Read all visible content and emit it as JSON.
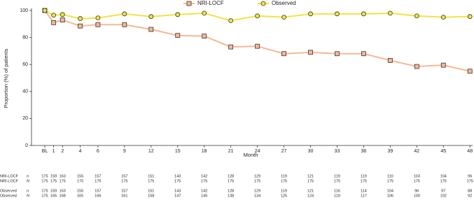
{
  "chart_data": {
    "type": "line",
    "xlabel": "Month",
    "ylabel": "Proportion (%) of patients",
    "x": [
      0,
      1,
      2,
      4,
      6,
      9,
      12,
      15,
      18,
      21,
      24,
      27,
      30,
      33,
      36,
      39,
      42,
      45,
      48
    ],
    "series": [
      {
        "name": "NRI-LOCF",
        "color": "#f6b896",
        "marker": "square",
        "values": [
          100,
          91,
          93,
          88.5,
          89.5,
          89.5,
          86,
          81.5,
          81,
          73,
          73.5,
          68,
          69,
          68,
          68,
          63,
          58.5,
          59.5,
          55
        ]
      },
      {
        "name": "Observed",
        "color": "#f0e442",
        "marker": "circle",
        "values": [
          100,
          96.5,
          97,
          94,
          94.5,
          97.5,
          95.5,
          97,
          98,
          92.5,
          96,
          95,
          97.5,
          97.5,
          97.5,
          98,
          96,
          95,
          95.5
        ]
      }
    ],
    "xlim": [
      -1.5,
      48.3
    ],
    "ylim": [
      0,
      100
    ],
    "xticks": [
      {
        "value": 0,
        "label": "BL"
      },
      1,
      2,
      4,
      6,
      9,
      12,
      15,
      18,
      21,
      24,
      27,
      30,
      33,
      36,
      39,
      42,
      45,
      48
    ],
    "yticks": [
      0,
      20,
      40,
      60,
      80,
      100
    ],
    "legend": "top",
    "table": [
      {
        "group": "NRI-LOCF",
        "stat": "n",
        "values": [
          175,
          159,
          163,
          155,
          157,
          157,
          151,
          143,
          142,
          128,
          129,
          119,
          121,
          119,
          119,
          110,
          103,
          104,
          96
        ]
      },
      {
        "group": "NRI-LOCF",
        "stat": "N",
        "values": [
          175,
          175,
          175,
          175,
          175,
          175,
          175,
          175,
          175,
          175,
          175,
          175,
          175,
          175,
          175,
          175,
          175,
          175,
          175
        ]
      },
      {
        "group": "Observed",
        "stat": "n",
        "values": [
          175,
          159,
          163,
          155,
          157,
          157,
          151,
          143,
          142,
          128,
          129,
          119,
          121,
          116,
          114,
          104,
          96,
          97,
          88
        ]
      },
      {
        "group": "Observed",
        "stat": "N",
        "values": [
          175,
          165,
          168,
          165,
          166,
          161,
          158,
          147,
          145,
          138,
          134,
          125,
          124,
          119,
          117,
          106,
          100,
          102,
          92
        ]
      }
    ]
  }
}
